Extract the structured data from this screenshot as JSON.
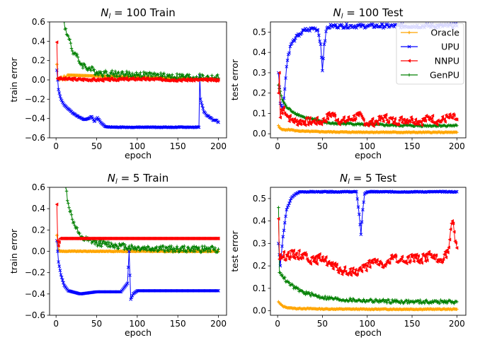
{
  "figure": {
    "colors": {
      "Oracle": "#ffa500",
      "UPU": "#0000ff",
      "NNPU": "#ff0000",
      "GenPU": "#008000"
    },
    "legend": {
      "placement": "top-right of upper-right panel",
      "entries": [
        "Oracle",
        "UPU",
        "NNPU",
        "GenPU"
      ]
    }
  },
  "chart_data": [
    {
      "id": "p1",
      "type": "line",
      "title": {
        "sym": "N",
        "sub": "l",
        "rest": " = 100 Train"
      },
      "xlabel": "epoch",
      "ylabel": "train error",
      "xlim": [
        -8,
        210
      ],
      "ylim": [
        -0.6,
        0.6
      ],
      "xticks": [
        0,
        50,
        100,
        150,
        200
      ],
      "yticks": [
        -0.6,
        -0.4,
        -0.2,
        0.0,
        0.2,
        0.4,
        0.6
      ],
      "ytick_labels": [
        "−0.6",
        "−0.4",
        "−0.2",
        "0.0",
        "0.2",
        "0.4",
        "0.6"
      ],
      "series": [
        {
          "name": "Oracle",
          "x": [
            1,
            2,
            4,
            6,
            8,
            10,
            12,
            14,
            200
          ],
          "y": [
            0.16,
            0.02,
            0.0,
            0.03,
            0.0,
            0.04,
            0.0,
            0.05,
            0.0
          ],
          "noise": 0.0,
          "seed": 1
        },
        {
          "name": "UPU",
          "x": [
            1,
            3,
            6,
            10,
            15,
            20,
            25,
            30,
            35,
            40,
            44,
            47,
            51,
            55,
            60,
            70,
            100,
            150,
            176,
            177,
            178,
            182,
            186,
            190,
            194,
            198,
            200
          ],
          "y": [
            0.1,
            -0.1,
            -0.2,
            -0.26,
            -0.3,
            -0.34,
            -0.37,
            -0.39,
            -0.41,
            -0.4,
            -0.38,
            -0.43,
            -0.39,
            -0.44,
            -0.48,
            -0.49,
            -0.49,
            -0.49,
            -0.49,
            0.04,
            -0.2,
            -0.33,
            -0.37,
            -0.39,
            -0.42,
            -0.42,
            -0.44
          ],
          "noise": 0.004,
          "seed": 2
        },
        {
          "name": "NNPU",
          "x": [
            1,
            2,
            3,
            6,
            10,
            50,
            100,
            150,
            200
          ],
          "y": [
            0.39,
            0.01,
            0.02,
            0.01,
            0.01,
            0.0,
            0.01,
            0.0,
            0.0
          ],
          "noise": 0.012,
          "seed": 3
        },
        {
          "name": "GenPU",
          "x": [
            10,
            13,
            17,
            20,
            25,
            30,
            40,
            50,
            60,
            80,
            100,
            130,
            160,
            200
          ],
          "y": [
            0.6,
            0.47,
            0.42,
            0.3,
            0.25,
            0.17,
            0.12,
            0.08,
            0.07,
            0.06,
            0.05,
            0.04,
            0.03,
            0.02
          ],
          "noise": 0.035,
          "seed": 4
        }
      ]
    },
    {
      "id": "p2",
      "type": "line",
      "title": {
        "sym": "N",
        "sub": "l",
        "rest": " = 100 Test"
      },
      "xlabel": "epoch",
      "ylabel": "test error",
      "xlim": [
        -8,
        210
      ],
      "ylim": [
        -0.02,
        0.55
      ],
      "xticks": [
        0,
        50,
        100,
        150,
        200
      ],
      "yticks": [
        0.0,
        0.1,
        0.2,
        0.3,
        0.4,
        0.5
      ],
      "ytick_labels": [
        "0.0",
        "0.1",
        "0.2",
        "0.3",
        "0.4",
        "0.5"
      ],
      "series": [
        {
          "name": "Oracle",
          "x": [
            1,
            2,
            5,
            10,
            15,
            20,
            30,
            50,
            80,
            100,
            150,
            200
          ],
          "y": [
            0.04,
            0.03,
            0.02,
            0.02,
            0.02,
            0.015,
            0.012,
            0.01,
            0.008,
            0.008,
            0.007,
            0.007
          ],
          "noise": 0.002,
          "seed": 5
        },
        {
          "name": "UPU",
          "x": [
            1,
            3,
            6,
            8,
            10,
            12,
            15,
            20,
            25,
            30,
            35,
            40,
            45,
            48,
            50,
            52,
            55,
            60,
            70,
            100,
            150,
            200
          ],
          "y": [
            0.3,
            0.15,
            0.13,
            0.22,
            0.33,
            0.39,
            0.44,
            0.47,
            0.49,
            0.51,
            0.51,
            0.52,
            0.51,
            0.44,
            0.31,
            0.44,
            0.52,
            0.53,
            0.53,
            0.53,
            0.53,
            0.53
          ],
          "noise": 0.01,
          "seed": 6
        },
        {
          "name": "NNPU",
          "x": [
            1,
            2,
            3,
            4,
            5,
            7,
            10,
            15,
            20,
            30,
            40,
            50,
            60,
            70,
            80,
            90,
            100,
            110,
            120,
            130,
            140,
            150,
            160,
            170,
            180,
            190,
            195,
            200
          ],
          "y": [
            0.2,
            0.3,
            0.08,
            0.12,
            0.1,
            0.13,
            0.09,
            0.07,
            0.06,
            0.06,
            0.06,
            0.06,
            0.1,
            0.06,
            0.07,
            0.09,
            0.05,
            0.06,
            0.08,
            0.06,
            0.07,
            0.07,
            0.06,
            0.08,
            0.06,
            0.08,
            0.08,
            0.07
          ],
          "noise": 0.02,
          "seed": 7
        },
        {
          "name": "GenPU",
          "x": [
            1,
            5,
            10,
            20,
            30,
            40,
            50,
            60,
            80,
            100,
            150,
            200
          ],
          "y": [
            0.24,
            0.17,
            0.13,
            0.1,
            0.08,
            0.07,
            0.06,
            0.05,
            0.05,
            0.045,
            0.04,
            0.04
          ],
          "noise": 0.005,
          "seed": 8
        }
      ]
    },
    {
      "id": "p3",
      "type": "line",
      "title": {
        "sym": "N",
        "sub": "l",
        "rest": " = 5 Train"
      },
      "xlabel": "epoch",
      "ylabel": "train error",
      "xlim": [
        -8,
        210
      ],
      "ylim": [
        -0.6,
        0.6
      ],
      "xticks": [
        0,
        50,
        100,
        150,
        200
      ],
      "yticks": [
        -0.6,
        -0.4,
        -0.2,
        0.0,
        0.2,
        0.4,
        0.6
      ],
      "ytick_labels": [
        "−0.6",
        "−0.4",
        "−0.2",
        "0.0",
        "0.2",
        "0.4",
        "0.6"
      ],
      "series": [
        {
          "name": "Oracle",
          "x": [
            1,
            2,
            3,
            5,
            10,
            50,
            100,
            150,
            200
          ],
          "y": [
            0.15,
            0.08,
            0.02,
            0.0,
            0.0,
            0.0,
            0.0,
            0.0,
            0.0
          ],
          "noise": 0.003,
          "seed": 9
        },
        {
          "name": "UPU",
          "x": [
            1,
            3,
            6,
            10,
            15,
            20,
            30,
            50,
            80,
            88,
            90,
            92,
            95,
            100,
            150,
            200
          ],
          "y": [
            0.1,
            -0.1,
            -0.22,
            -0.32,
            -0.37,
            -0.38,
            -0.4,
            -0.38,
            -0.38,
            -0.3,
            0.0,
            -0.45,
            -0.4,
            -0.37,
            -0.37,
            -0.37
          ],
          "noise": 0.0,
          "seed": 10
        },
        {
          "name": "NNPU",
          "x": [
            1,
            2,
            3,
            5,
            10,
            50,
            100,
            150,
            200
          ],
          "y": [
            0.44,
            0.1,
            0.05,
            0.12,
            0.12,
            0.12,
            0.12,
            0.12,
            0.12
          ],
          "noise": 0.0,
          "seed": 11
        },
        {
          "name": "GenPU",
          "x": [
            12,
            15,
            20,
            25,
            30,
            40,
            50,
            60,
            80,
            100,
            150,
            200
          ],
          "y": [
            0.6,
            0.45,
            0.3,
            0.22,
            0.12,
            0.1,
            0.08,
            0.07,
            0.05,
            0.03,
            0.02,
            0.02
          ],
          "noise": 0.03,
          "seed": 12
        }
      ]
    },
    {
      "id": "p4",
      "type": "line",
      "title": {
        "sym": "N",
        "sub": "l",
        "rest": " = 5 Test"
      },
      "xlabel": "epoch",
      "ylabel": "test error",
      "xlim": [
        -8,
        210
      ],
      "ylim": [
        -0.02,
        0.55
      ],
      "xticks": [
        0,
        50,
        100,
        150,
        200
      ],
      "yticks": [
        0.0,
        0.1,
        0.2,
        0.3,
        0.4,
        0.5
      ],
      "ytick_labels": [
        "0.0",
        "0.1",
        "0.2",
        "0.3",
        "0.4",
        "0.5"
      ],
      "series": [
        {
          "name": "Oracle",
          "x": [
            1,
            3,
            6,
            10,
            15,
            20,
            30,
            50,
            100,
            150,
            200
          ],
          "y": [
            0.04,
            0.03,
            0.02,
            0.015,
            0.012,
            0.01,
            0.01,
            0.008,
            0.007,
            0.007,
            0.007
          ],
          "noise": 0.002,
          "seed": 13
        },
        {
          "name": "UPU",
          "x": [
            1,
            3,
            6,
            10,
            15,
            20,
            25,
            30,
            50,
            80,
            88,
            91,
            93,
            95,
            97,
            100,
            150,
            200
          ],
          "y": [
            0.3,
            0.2,
            0.33,
            0.45,
            0.5,
            0.52,
            0.53,
            0.53,
            0.53,
            0.53,
            0.53,
            0.43,
            0.34,
            0.45,
            0.52,
            0.53,
            0.53,
            0.53
          ],
          "noise": 0.002,
          "seed": 14
        },
        {
          "name": "NNPU",
          "x": [
            1,
            2,
            3,
            5,
            10,
            20,
            30,
            40,
            50,
            60,
            70,
            80,
            90,
            100,
            110,
            120,
            130,
            140,
            150,
            160,
            170,
            180,
            190,
            195,
            200
          ],
          "y": [
            0.41,
            0.23,
            0.25,
            0.24,
            0.25,
            0.25,
            0.25,
            0.22,
            0.24,
            0.2,
            0.18,
            0.17,
            0.18,
            0.2,
            0.22,
            0.2,
            0.24,
            0.22,
            0.24,
            0.23,
            0.25,
            0.22,
            0.26,
            0.4,
            0.28
          ],
          "noise": 0.02,
          "seed": 15
        },
        {
          "name": "GenPU",
          "x": [
            1,
            2,
            3,
            5,
            10,
            20,
            30,
            40,
            50,
            70,
            100,
            150,
            200
          ],
          "y": [
            0.46,
            0.17,
            0.17,
            0.16,
            0.13,
            0.1,
            0.08,
            0.07,
            0.06,
            0.05,
            0.045,
            0.04,
            0.04
          ],
          "noise": 0.008,
          "seed": 16
        }
      ]
    }
  ]
}
